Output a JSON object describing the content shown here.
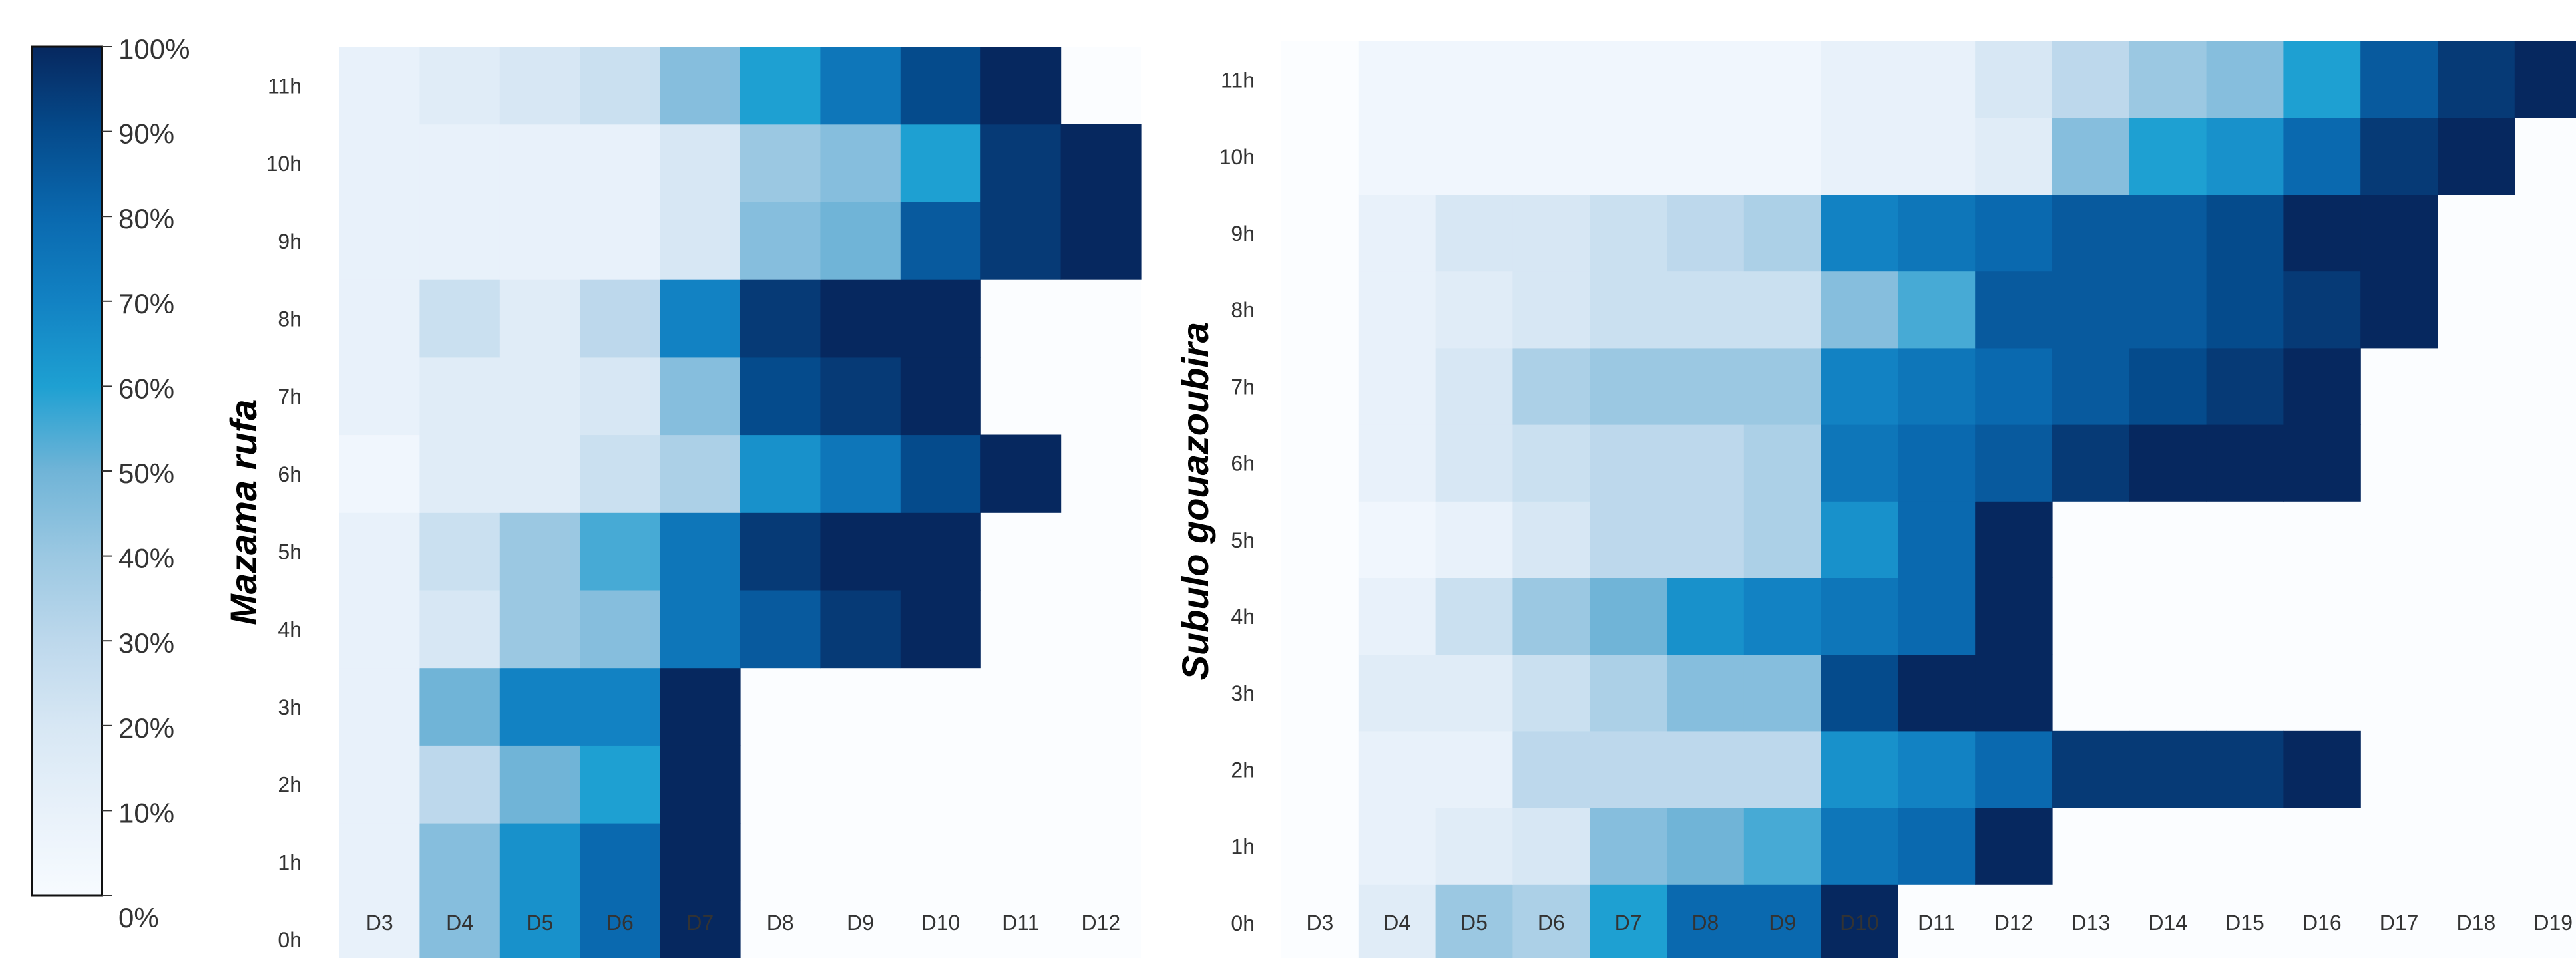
{
  "chart_data": [
    {
      "type": "heatmap",
      "ylabel": "Mazama rufa",
      "x": [
        "D3",
        "D4",
        "D5",
        "D6",
        "D7",
        "D8",
        "D9",
        "D10",
        "D11",
        "D12"
      ],
      "y": [
        "0h",
        "1h",
        "2h",
        "3h",
        "4h",
        "5h",
        "6h",
        "7h",
        "8h",
        "9h",
        "10h",
        "11h"
      ],
      "values": [
        [
          10,
          45,
          65,
          80,
          100,
          null,
          null,
          null,
          null,
          null
        ],
        [
          10,
          45,
          65,
          80,
          100,
          null,
          null,
          null,
          null,
          null
        ],
        [
          10,
          30,
          50,
          60,
          100,
          null,
          null,
          null,
          null,
          null
        ],
        [
          10,
          50,
          70,
          70,
          100,
          null,
          null,
          null,
          null,
          null
        ],
        [
          10,
          20,
          40,
          45,
          75,
          85,
          95,
          100,
          null,
          null
        ],
        [
          10,
          25,
          40,
          55,
          75,
          95,
          100,
          100,
          null,
          null
        ],
        [
          5,
          15,
          15,
          25,
          35,
          65,
          75,
          90,
          100,
          null
        ],
        [
          10,
          15,
          15,
          20,
          45,
          90,
          95,
          100,
          null,
          null
        ],
        [
          10,
          25,
          15,
          30,
          70,
          95,
          100,
          100,
          null,
          null
        ],
        [
          10,
          10,
          10,
          10,
          20,
          45,
          50,
          85,
          95,
          100
        ],
        [
          10,
          10,
          10,
          10,
          20,
          40,
          45,
          60,
          95,
          100
        ],
        [
          10,
          15,
          20,
          25,
          45,
          60,
          75,
          90,
          100,
          null
        ]
      ]
    },
    {
      "type": "heatmap",
      "ylabel": "Subulo gouazoubira",
      "x": [
        "D3",
        "D4",
        "D5",
        "D6",
        "D7",
        "D8",
        "D9",
        "D10",
        "D11",
        "D12",
        "D13",
        "D14",
        "D15",
        "D16",
        "D17",
        "D18",
        "D19"
      ],
      "y": [
        "0h",
        "1h",
        "2h",
        "3h",
        "4h",
        "5h",
        "6h",
        "7h",
        "8h",
        "9h",
        "10h",
        "11h"
      ],
      "values": [
        [
          null,
          15,
          40,
          35,
          60,
          80,
          80,
          100,
          null,
          null,
          null,
          null,
          null,
          null,
          null,
          null,
          null
        ],
        [
          null,
          10,
          15,
          20,
          45,
          50,
          55,
          75,
          80,
          100,
          null,
          null,
          null,
          null,
          null,
          null,
          null
        ],
        [
          null,
          10,
          10,
          30,
          30,
          30,
          30,
          65,
          70,
          80,
          95,
          95,
          95,
          100,
          null,
          null,
          null
        ],
        [
          null,
          15,
          15,
          25,
          35,
          45,
          45,
          90,
          100,
          100,
          null,
          null,
          null,
          null,
          null,
          null,
          null
        ],
        [
          null,
          10,
          25,
          40,
          50,
          65,
          70,
          75,
          80,
          100,
          null,
          null,
          null,
          null,
          null,
          null,
          null
        ],
        [
          null,
          5,
          10,
          20,
          30,
          30,
          35,
          65,
          80,
          100,
          null,
          null,
          null,
          null,
          null,
          null,
          null
        ],
        [
          null,
          10,
          20,
          25,
          30,
          30,
          35,
          75,
          80,
          85,
          95,
          100,
          100,
          100,
          null,
          null,
          null
        ],
        [
          null,
          10,
          20,
          35,
          40,
          40,
          40,
          70,
          75,
          80,
          85,
          90,
          95,
          100,
          null,
          null,
          null
        ],
        [
          null,
          10,
          15,
          20,
          25,
          25,
          25,
          45,
          55,
          85,
          85,
          85,
          90,
          95,
          100,
          null,
          null
        ],
        [
          null,
          10,
          20,
          20,
          25,
          30,
          35,
          70,
          75,
          80,
          85,
          85,
          90,
          100,
          100,
          null,
          null
        ],
        [
          null,
          5,
          5,
          5,
          5,
          5,
          5,
          10,
          10,
          15,
          45,
          60,
          65,
          80,
          95,
          100,
          null
        ],
        [
          null,
          5,
          5,
          5,
          5,
          5,
          5,
          10,
          10,
          20,
          30,
          40,
          45,
          60,
          85,
          95,
          100
        ]
      ]
    }
  ],
  "colorbar": {
    "labels": [
      "100%",
      "90%",
      "80%",
      "70%",
      "60%",
      "50%",
      "40%",
      "30%",
      "20%",
      "10%",
      "0%"
    ]
  }
}
